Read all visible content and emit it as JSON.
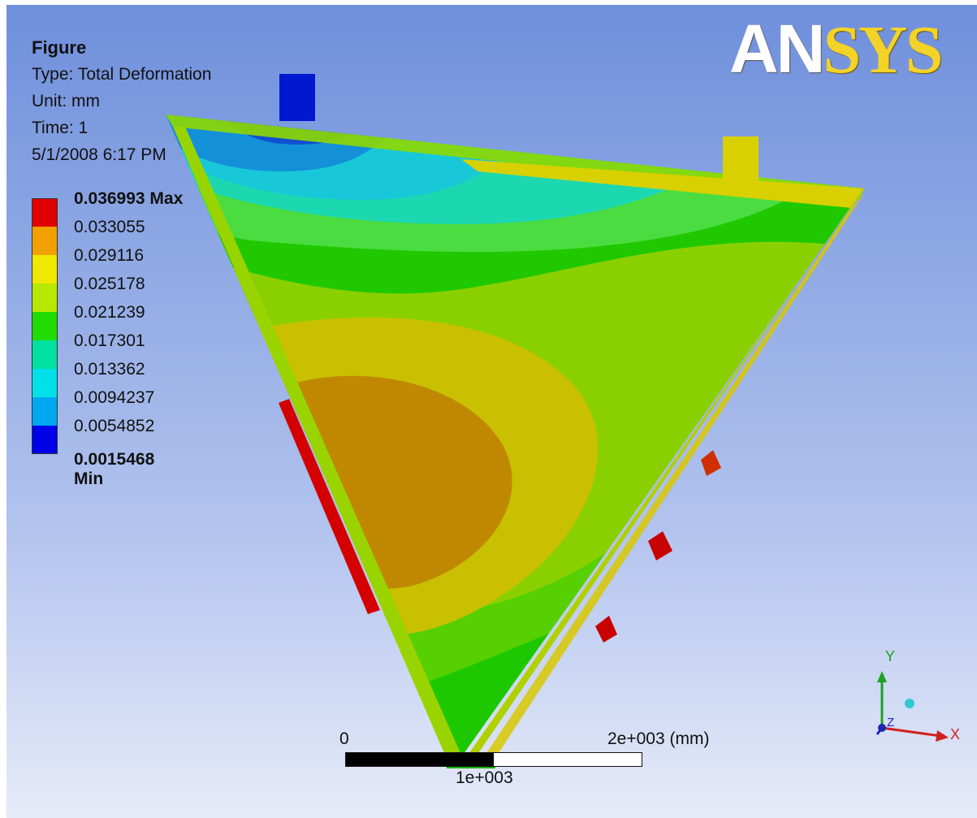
{
  "info": {
    "title": "Figure",
    "type": "Type: Total Deformation",
    "unit": "Unit: mm",
    "time": "Time: 1",
    "date": "5/1/2008 6:17 PM"
  },
  "legend": {
    "max_label": "0.036993 Max",
    "values": [
      "0.033055",
      "0.029116",
      "0.025178",
      "0.021239",
      "0.017301",
      "0.013362",
      "0.0094237",
      "0.0054852"
    ],
    "min_label": "0.0015468 Min",
    "colors": [
      "#e00000",
      "#f0a000",
      "#f0e800",
      "#b8e800",
      "#20dc00",
      "#00e0a0",
      "#00e0e8",
      "#00a8f0",
      "#0000e8"
    ]
  },
  "logo": {
    "an": "AN",
    "sys": "SYS"
  },
  "scale_bar": {
    "start": "0",
    "end": "2e+003 (mm)",
    "mid": "1e+003"
  },
  "triad": {
    "y": "Y",
    "x": "X",
    "z": "Z"
  },
  "colors": {
    "background_top": "#6f8fdc",
    "background_bottom": "#e6ebf8"
  }
}
